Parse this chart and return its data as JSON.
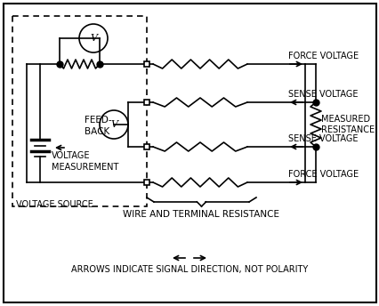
{
  "fig_width": 4.27,
  "fig_height": 3.44,
  "dpi": 100,
  "bg_color": "#ffffff",
  "line_color": "#000000",
  "text_color": "#000000",
  "label_voltage_source": "VOLTAGE SOURCE",
  "label_feedback": "FEED-\nBACK",
  "label_voltage_meas": "VOLTAGE\nMEASUREMENT",
  "label_measured_res": "MEASURED\nRESISTANCE",
  "label_force_top": "FORCE VOLTAGE",
  "label_sense_top": "SENSE VOLTAGE",
  "label_sense_bot": "SENSE VOLTAGE",
  "label_force_bot": "FORCE VOLTAGE",
  "title_bottom": "WIRE AND TERMINAL RESISTANCE",
  "title_bottom2": "ARROWS INDICATE SIGNAL DIRECTION, NOT POLARITY"
}
